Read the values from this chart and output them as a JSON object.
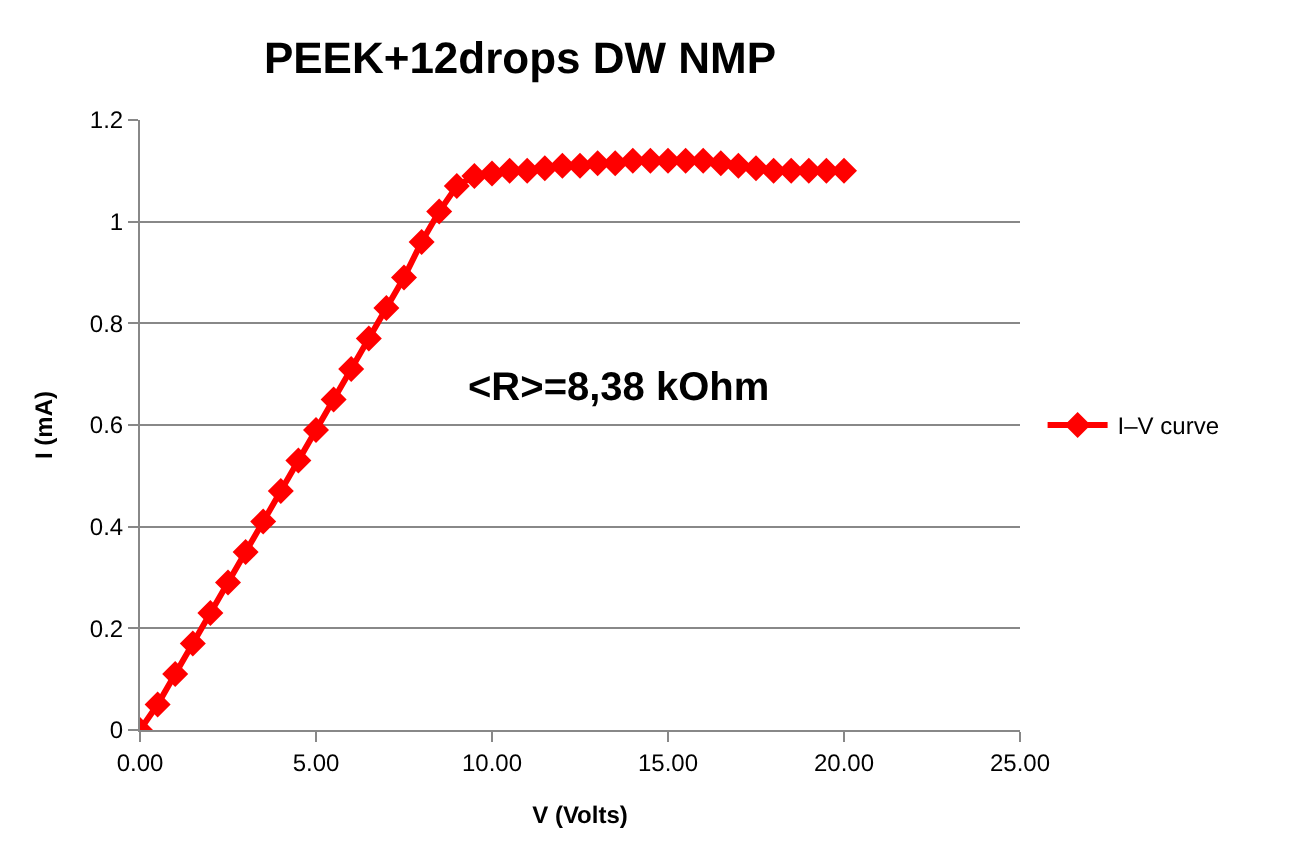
{
  "chart_data": {
    "type": "line",
    "title": "PEEK+12drops DW NMP",
    "xlabel": "V (Volts)",
    "ylabel": "I (mA)",
    "x": [
      0,
      0.5,
      1,
      1.5,
      2,
      2.5,
      3,
      3.5,
      4,
      4.5,
      5,
      5.5,
      6,
      6.5,
      7,
      7.5,
      8,
      8.5,
      9,
      9.5,
      10,
      10.5,
      11,
      11.5,
      12,
      12.5,
      13,
      13.5,
      14,
      14.5,
      15,
      15.5,
      16,
      16.5,
      17,
      17.5,
      18,
      18.5,
      19,
      19.5,
      20
    ],
    "series": [
      {
        "name": "I–V curve",
        "color": "#ff0000",
        "values": [
          0,
          0.05,
          0.11,
          0.17,
          0.23,
          0.29,
          0.35,
          0.41,
          0.47,
          0.53,
          0.59,
          0.65,
          0.71,
          0.77,
          0.83,
          0.89,
          0.96,
          1.02,
          1.07,
          1.09,
          1.095,
          1.1,
          1.1,
          1.105,
          1.11,
          1.11,
          1.115,
          1.115,
          1.12,
          1.12,
          1.12,
          1.12,
          1.12,
          1.115,
          1.11,
          1.105,
          1.1,
          1.1,
          1.1,
          1.1,
          1.1
        ]
      }
    ],
    "xlim": [
      0,
      25
    ],
    "xticks": [
      {
        "value": 0,
        "label": "0.00"
      },
      {
        "value": 5,
        "label": "5.00"
      },
      {
        "value": 10,
        "label": "10.00"
      },
      {
        "value": 15,
        "label": "15.00"
      },
      {
        "value": 20,
        "label": "20.00"
      },
      {
        "value": 25,
        "label": "25.00"
      }
    ],
    "ylim": [
      0,
      1.2
    ],
    "yticks": [
      0,
      0.2,
      0.4,
      0.6,
      0.8,
      1,
      1.2
    ],
    "annotations": [
      "<R>=8,38 kOhm"
    ],
    "grid": "y",
    "legend": "right",
    "marker": "diamond",
    "line_style": "solid"
  }
}
